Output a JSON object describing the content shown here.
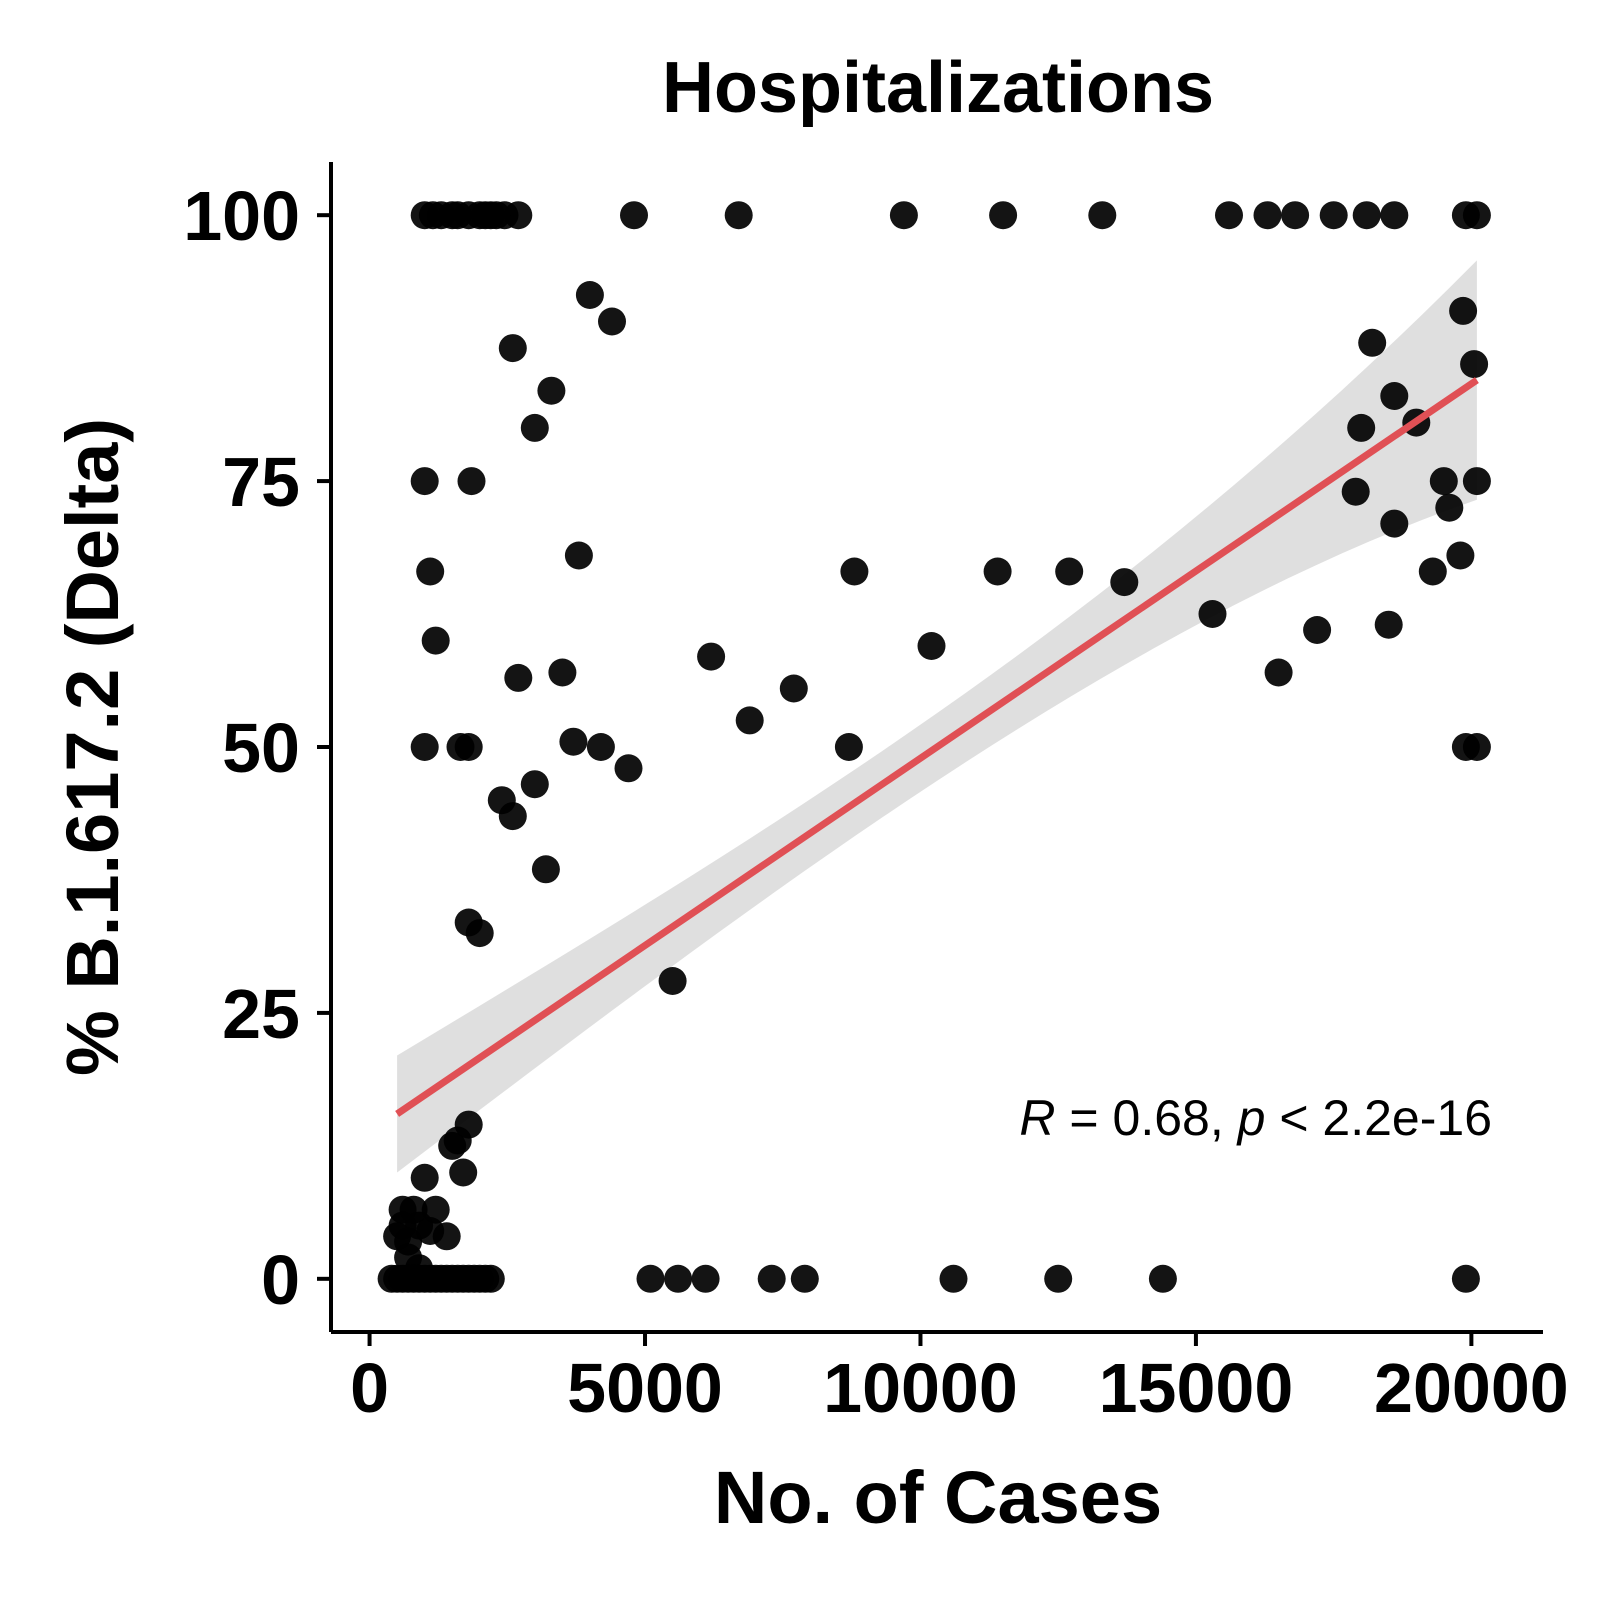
{
  "chart_data": {
    "type": "scatter",
    "title": "Hospitalizations",
    "xlabel": "No. of Cases",
    "ylabel": "% B.1.617.2 (Delta)",
    "xlim": [
      -700,
      21300
    ],
    "ylim": [
      -5,
      105
    ],
    "xticks": [
      0,
      5000,
      10000,
      15000,
      20000
    ],
    "yticks": [
      0,
      25,
      50,
      75,
      100
    ],
    "grid": false,
    "annotation": {
      "r_symbol": "R",
      "r_text": " = 0.68, ",
      "p_symbol": "p",
      "p_text": " < 2.2e-16"
    },
    "fit": {
      "x": [
        500,
        20100
      ],
      "y": [
        15.5,
        84.5
      ],
      "ci_lower": [
        10,
        73
      ],
      "ci_upper": [
        21,
        95.5
      ],
      "color": "#e05055",
      "ci_color": "#d9d9d9"
    },
    "point_color": "#000000",
    "points": [
      [
        1000,
        100
      ],
      [
        1150,
        100
      ],
      [
        1300,
        100
      ],
      [
        1500,
        100
      ],
      [
        1600,
        100
      ],
      [
        1800,
        100
      ],
      [
        2000,
        100
      ],
      [
        2100,
        100
      ],
      [
        2200,
        100
      ],
      [
        2300,
        100
      ],
      [
        2450,
        100
      ],
      [
        2700,
        100
      ],
      [
        4800,
        100
      ],
      [
        6700,
        100
      ],
      [
        9700,
        100
      ],
      [
        11500,
        100
      ],
      [
        13300,
        100
      ],
      [
        15600,
        100
      ],
      [
        16300,
        100
      ],
      [
        16800,
        100
      ],
      [
        17500,
        100
      ],
      [
        18100,
        100
      ],
      [
        18600,
        100
      ],
      [
        19900,
        100
      ],
      [
        20100,
        100
      ],
      [
        4000,
        92.5
      ],
      [
        4400,
        90
      ],
      [
        19850,
        91
      ],
      [
        2600,
        87.5
      ],
      [
        18200,
        88
      ],
      [
        20050,
        86
      ],
      [
        3300,
        83.5
      ],
      [
        3000,
        80
      ],
      [
        18600,
        83
      ],
      [
        18000,
        80
      ],
      [
        19000,
        80.5
      ],
      [
        1000,
        75
      ],
      [
        1850,
        75
      ],
      [
        17900,
        74
      ],
      [
        19500,
        75
      ],
      [
        19600,
        72.5
      ],
      [
        18600,
        71
      ],
      [
        20100,
        75
      ],
      [
        1100,
        66.5
      ],
      [
        3800,
        68
      ],
      [
        8800,
        66.5
      ],
      [
        11400,
        66.5
      ],
      [
        12700,
        66.5
      ],
      [
        13700,
        65.5
      ],
      [
        19300,
        66.5
      ],
      [
        19800,
        68
      ],
      [
        1200,
        60
      ],
      [
        6200,
        58.5
      ],
      [
        10200,
        59.5
      ],
      [
        15300,
        62.5
      ],
      [
        17200,
        61
      ],
      [
        18500,
        61.5
      ],
      [
        2700,
        56.5
      ],
      [
        3500,
        57
      ],
      [
        7700,
        55.5
      ],
      [
        16500,
        57
      ],
      [
        1000,
        50
      ],
      [
        1650,
        50
      ],
      [
        1800,
        50
      ],
      [
        3700,
        50.5
      ],
      [
        4200,
        50
      ],
      [
        4700,
        48
      ],
      [
        6900,
        52.5
      ],
      [
        8700,
        50
      ],
      [
        19900,
        50
      ],
      [
        20100,
        50
      ],
      [
        2400,
        45
      ],
      [
        2600,
        43.5
      ],
      [
        3000,
        46.5
      ],
      [
        3200,
        38.5
      ],
      [
        1800,
        33.5
      ],
      [
        2000,
        32.5
      ],
      [
        5500,
        28
      ],
      [
        1500,
        12.5
      ],
      [
        1600,
        13
      ],
      [
        1800,
        14.5
      ],
      [
        1700,
        10
      ],
      [
        1000,
        9.5
      ],
      [
        600,
        6.5
      ],
      [
        800,
        6.5
      ],
      [
        1200,
        6.5
      ],
      [
        500,
        4
      ],
      [
        600,
        5
      ],
      [
        700,
        3.5
      ],
      [
        900,
        5
      ],
      [
        1100,
        4.5
      ],
      [
        1400,
        4
      ],
      [
        700,
        2
      ],
      [
        900,
        1
      ],
      [
        400,
        0
      ],
      [
        500,
        0
      ],
      [
        600,
        0
      ],
      [
        700,
        0
      ],
      [
        800,
        0
      ],
      [
        900,
        0
      ],
      [
        1000,
        0
      ],
      [
        1100,
        0
      ],
      [
        1200,
        0
      ],
      [
        1300,
        0
      ],
      [
        1400,
        0
      ],
      [
        1500,
        0
      ],
      [
        1600,
        0
      ],
      [
        1700,
        0
      ],
      [
        1800,
        0
      ],
      [
        1900,
        0
      ],
      [
        2000,
        0
      ],
      [
        2100,
        0
      ],
      [
        2200,
        0
      ],
      [
        5100,
        0
      ],
      [
        5600,
        0
      ],
      [
        6100,
        0
      ],
      [
        7300,
        0
      ],
      [
        7900,
        0
      ],
      [
        10600,
        0
      ],
      [
        12500,
        0
      ],
      [
        14400,
        0
      ],
      [
        19900,
        0
      ]
    ]
  }
}
